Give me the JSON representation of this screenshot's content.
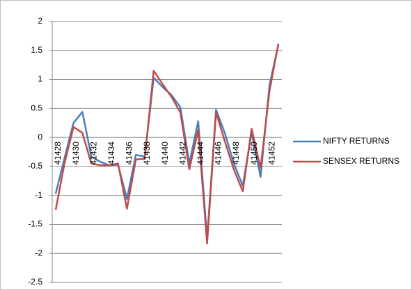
{
  "chart_data": {
    "type": "line",
    "title": "",
    "xlabel": "",
    "ylabel": "",
    "x": [
      41428,
      41429,
      41430,
      41431,
      41432,
      41433,
      41434,
      41435,
      41436,
      41437,
      41438,
      41439,
      41440,
      41441,
      41442,
      41443,
      41444,
      41445,
      41446,
      41447,
      41448,
      41449,
      41450,
      41451,
      41452,
      41453
    ],
    "x_tick_labels": [
      "41428",
      "41430",
      "41432",
      "41434",
      "41436",
      "41438",
      "41440",
      "41442",
      "41444",
      "41446",
      "41448",
      "41450",
      "41452"
    ],
    "y_tick_labels": [
      "2",
      "1.5",
      "1",
      "0.5",
      "0",
      "-0.5",
      "-1",
      "-1.5",
      "-2",
      "-2.5"
    ],
    "ylim": [
      -2.5,
      2
    ],
    "grid": true,
    "legend_position": "right",
    "series": [
      {
        "name": "NIFTY RETURNS",
        "color": "#4a7ebb",
        "values": [
          -0.97,
          -0.35,
          0.25,
          0.44,
          -0.33,
          -0.42,
          -0.48,
          -0.47,
          -1.06,
          -0.3,
          -0.33,
          1.03,
          0.87,
          0.73,
          0.52,
          -0.45,
          0.28,
          -1.75,
          0.48,
          0.07,
          -0.45,
          -0.83,
          0.08,
          -0.68,
          0.9,
          1.6
        ]
      },
      {
        "name": "SENSEX RETURNS",
        "color": "#be4b48",
        "values": [
          -1.25,
          -0.44,
          0.18,
          0.08,
          -0.45,
          -0.48,
          -0.48,
          -0.45,
          -1.23,
          -0.38,
          -0.37,
          1.15,
          0.92,
          0.7,
          0.43,
          -0.55,
          0.13,
          -1.83,
          0.43,
          -0.07,
          -0.55,
          -0.93,
          0.15,
          -0.53,
          0.8,
          1.62
        ]
      }
    ]
  }
}
